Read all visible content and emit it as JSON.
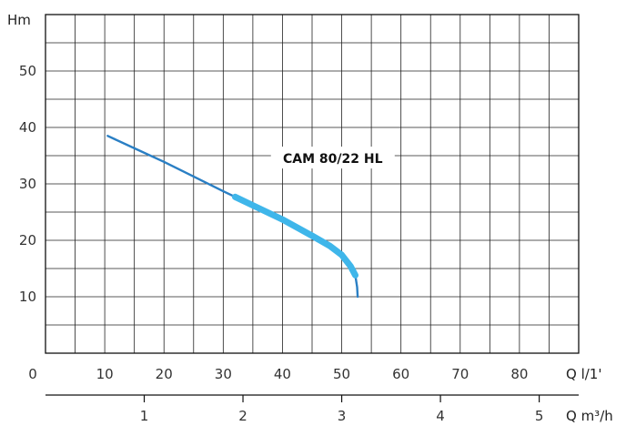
{
  "chart_data": {
    "type": "line",
    "ylabel": "Hm",
    "xlabel": "Q l/1'",
    "xlabel_secondary": "Q m³/h",
    "ylim": [
      0,
      60
    ],
    "xlim": [
      0,
      90
    ],
    "grid": true,
    "y_ticks": [
      "10",
      "20",
      "30",
      "40",
      "50"
    ],
    "x_ticks": [
      "0",
      "10",
      "20",
      "30",
      "40",
      "50",
      "60",
      "70",
      "80"
    ],
    "x2_ticks": [
      "1",
      "2",
      "3",
      "4",
      "5"
    ],
    "x2_tick_values": [
      1,
      2,
      3,
      4,
      5
    ],
    "series": [
      {
        "name": "CAM 80/22 HL",
        "color": "#2a7fc4",
        "x": [
          10.5,
          15,
          20,
          25,
          30,
          32,
          35,
          40,
          45,
          48,
          50,
          51.5,
          52.3,
          52.6,
          52.7
        ],
        "y": [
          38.5,
          36.3,
          33.9,
          31.3,
          28.7,
          27.7,
          26.2,
          23.7,
          20.8,
          19.0,
          17.4,
          15.4,
          13.8,
          11.7,
          10.0
        ]
      }
    ],
    "highlight": {
      "color": "#3fb6ea",
      "x": [
        32,
        35,
        40,
        45,
        48,
        50,
        51.5,
        52.3
      ],
      "y": [
        27.7,
        26.2,
        23.7,
        20.8,
        19.0,
        17.4,
        15.4,
        13.8
      ]
    },
    "annotation": {
      "text": "CAM 80/22 HL",
      "x": 48.5,
      "y": 34.5
    }
  }
}
